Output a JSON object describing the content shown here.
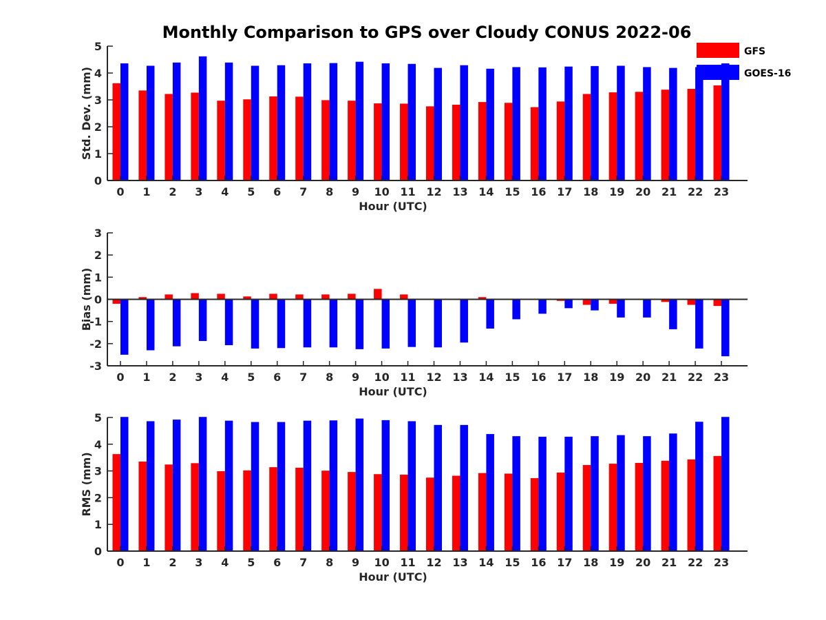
{
  "title": "Monthly Comparison to GPS over Cloudy CONUS 2022-06",
  "colors": {
    "GFS": "#ff0000",
    "GOES-16": "#0000ff",
    "axis": "#262626"
  },
  "legend": {
    "items": [
      "GFS",
      "GOES-16"
    ],
    "placement": "top-right"
  },
  "chart_data": [
    {
      "type": "bar",
      "xlabel": "Hour (UTC)",
      "ylabel": "Std. Dev. (mm)",
      "ylim": [
        0,
        5
      ],
      "yticks": [
        0,
        1,
        2,
        3,
        4,
        5
      ],
      "categories": [
        "0",
        "1",
        "2",
        "3",
        "4",
        "5",
        "6",
        "7",
        "8",
        "9",
        "10",
        "11",
        "12",
        "13",
        "14",
        "15",
        "16",
        "17",
        "18",
        "19",
        "20",
        "21",
        "22",
        "23"
      ],
      "series": [
        {
          "name": "GFS",
          "values": [
            3.62,
            3.35,
            3.22,
            3.27,
            2.97,
            3.02,
            3.13,
            3.12,
            2.99,
            2.97,
            2.87,
            2.86,
            2.76,
            2.82,
            2.92,
            2.89,
            2.73,
            2.94,
            3.22,
            3.28,
            3.3,
            3.38,
            3.41,
            3.54
          ]
        },
        {
          "name": "GOES-16",
          "values": [
            4.36,
            4.27,
            4.39,
            4.62,
            4.39,
            4.27,
            4.29,
            4.36,
            4.37,
            4.42,
            4.36,
            4.34,
            4.19,
            4.29,
            4.16,
            4.22,
            4.21,
            4.24,
            4.26,
            4.27,
            4.22,
            4.19,
            4.22,
            4.36
          ]
        }
      ],
      "grid": false
    },
    {
      "type": "bar",
      "xlabel": "Hour (UTC)",
      "ylabel": "Bias (mm)",
      "ylim": [
        -3,
        3
      ],
      "yticks": [
        -3,
        -2,
        -1,
        0,
        1,
        2,
        3
      ],
      "categories": [
        "0",
        "1",
        "2",
        "3",
        "4",
        "5",
        "6",
        "7",
        "8",
        "9",
        "10",
        "11",
        "12",
        "13",
        "14",
        "15",
        "16",
        "17",
        "18",
        "19",
        "20",
        "21",
        "22",
        "23"
      ],
      "series": [
        {
          "name": "GFS",
          "values": [
            -0.2,
            0.1,
            0.22,
            0.28,
            0.25,
            0.13,
            0.25,
            0.22,
            0.22,
            0.25,
            0.47,
            0.22,
            0.03,
            0.0,
            0.1,
            0.0,
            0.02,
            -0.07,
            -0.25,
            -0.2,
            0.0,
            -0.12,
            -0.25,
            -0.3
          ]
        },
        {
          "name": "GOES-16",
          "values": [
            -2.5,
            -2.3,
            -2.12,
            -1.88,
            -2.07,
            -2.22,
            -2.2,
            -2.17,
            -2.17,
            -2.25,
            -2.22,
            -2.15,
            -2.17,
            -1.95,
            -1.32,
            -0.9,
            -0.65,
            -0.4,
            -0.5,
            -0.82,
            -0.82,
            -1.35,
            -2.22,
            -2.57
          ]
        }
      ],
      "grid": false
    },
    {
      "type": "bar",
      "xlabel": "Hour (UTC)",
      "ylabel": "RMS (mm)",
      "ylim": [
        0,
        5
      ],
      "yticks": [
        0,
        1,
        2,
        3,
        4,
        5
      ],
      "categories": [
        "0",
        "1",
        "2",
        "3",
        "4",
        "5",
        "6",
        "7",
        "8",
        "9",
        "10",
        "11",
        "12",
        "13",
        "14",
        "15",
        "16",
        "17",
        "18",
        "19",
        "20",
        "21",
        "22",
        "23"
      ],
      "series": [
        {
          "name": "GFS",
          "values": [
            3.63,
            3.35,
            3.24,
            3.29,
            2.99,
            3.02,
            3.14,
            3.12,
            3.01,
            2.96,
            2.88,
            2.86,
            2.75,
            2.82,
            2.92,
            2.9,
            2.73,
            2.94,
            3.22,
            3.27,
            3.3,
            3.38,
            3.43,
            3.56
          ]
        },
        {
          "name": "GOES-16",
          "values": [
            5.02,
            4.86,
            4.92,
            5.02,
            4.88,
            4.83,
            4.83,
            4.88,
            4.89,
            4.96,
            4.9,
            4.86,
            4.72,
            4.72,
            4.38,
            4.3,
            4.28,
            4.28,
            4.3,
            4.34,
            4.3,
            4.4,
            4.84,
            5.02
          ]
        }
      ],
      "grid": false
    }
  ]
}
